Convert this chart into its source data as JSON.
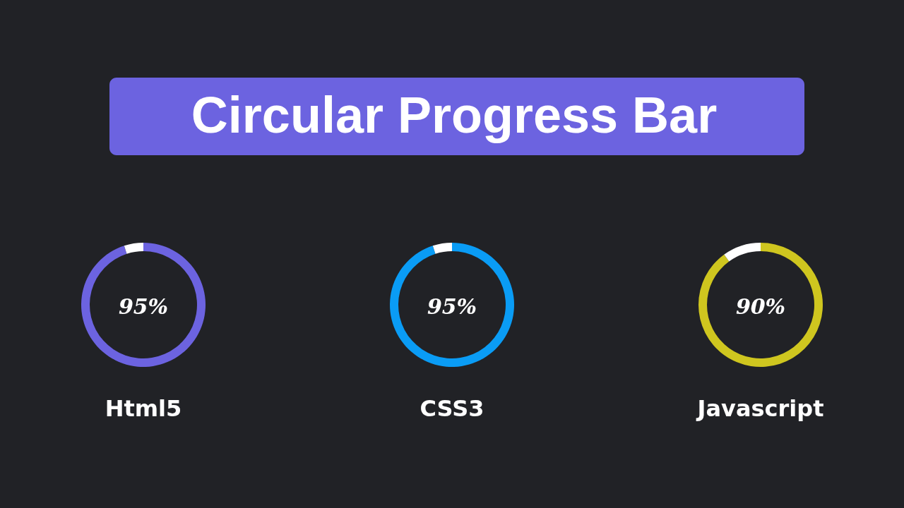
{
  "chart_data": [
    {
      "type": "other",
      "title": "Circular Progress Bar"
    },
    {
      "type": "donut",
      "categories": [
        null,
        null
      ],
      "values": [
        95,
        5
      ],
      "colors": [
        "#6c63e0",
        "#ffffff"
      ],
      "annotations": [
        "95%"
      ],
      "xlabel": "Html5"
    },
    {
      "type": "donut",
      "categories": [
        null,
        null
      ],
      "values": [
        95,
        5
      ],
      "colors": [
        "#0a9cf5",
        "#ffffff"
      ],
      "annotations": [
        "95%"
      ],
      "xlabel": "CSS3"
    },
    {
      "type": "donut",
      "categories": [
        null,
        null
      ],
      "values": [
        90,
        10
      ],
      "colors": [
        "#cfc61f",
        "#ffffff"
      ],
      "annotations": [
        "90%"
      ],
      "xlabel": "Javascript"
    }
  ]
}
